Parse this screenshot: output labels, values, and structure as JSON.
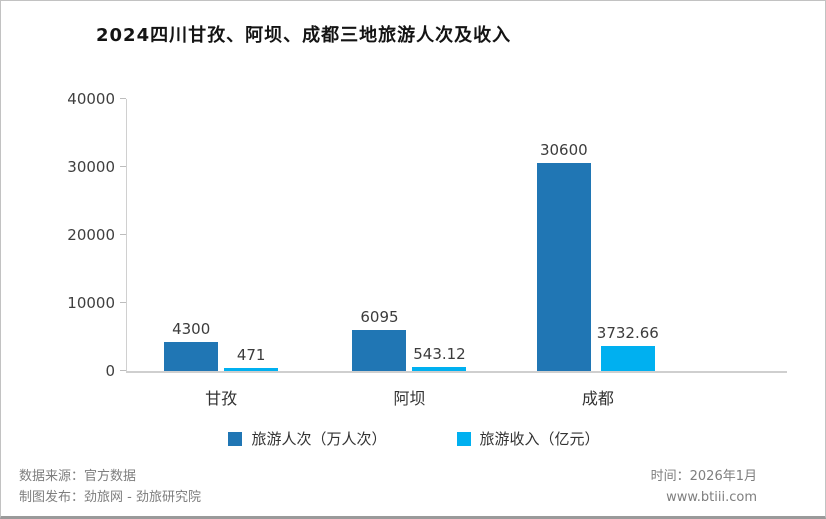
{
  "title": "2024四川甘孜、阿坝、成都三地旅游人次及收入",
  "chart_data": {
    "type": "bar",
    "title": "2024四川甘孜、阿坝、成都三地旅游人次及收入",
    "categories": [
      "甘孜",
      "阿坝",
      "成都"
    ],
    "series": [
      {
        "name": "旅游人次（万人次）",
        "color": "#2076B4",
        "values": [
          4300,
          6095,
          30600
        ]
      },
      {
        "name": "旅游收入（亿元）",
        "color": "#00B0F0",
        "values": [
          471,
          543.12,
          3732.66
        ]
      }
    ],
    "xlabel": "",
    "ylabel": "",
    "ylim": [
      0,
      40000
    ],
    "yticks": [
      0,
      10000,
      20000,
      30000,
      40000
    ],
    "grid": false,
    "legend_position": "bottom"
  },
  "footer": {
    "source": "数据来源：官方数据",
    "publisher": "制图发布：劲旅网 - 劲旅研究院",
    "time": "时间：2026年1月",
    "website": "www.btiii.com"
  }
}
